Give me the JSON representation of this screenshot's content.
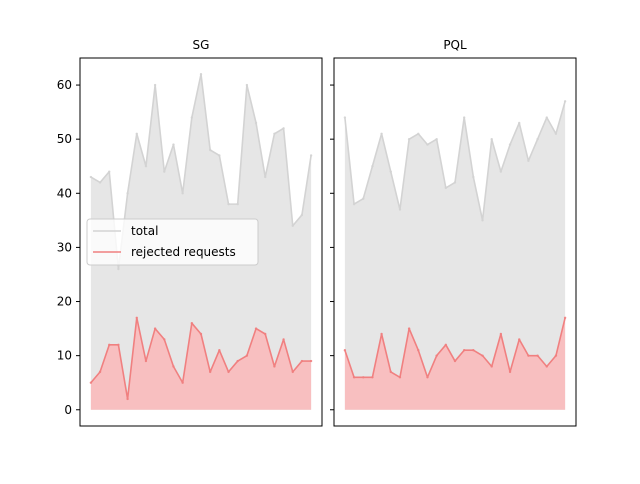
{
  "chart_data": {
    "type": "area",
    "shared_y": true,
    "ylim": [
      -3,
      65
    ],
    "yticks": [
      0,
      10,
      20,
      30,
      40,
      50,
      60
    ],
    "grid": false,
    "legend": {
      "placement": "center-left",
      "entries": [
        "total",
        "rejected requests"
      ]
    },
    "colors": {
      "total_line": "#d3d3d3",
      "total_fill": "#e6e6e6",
      "rejected_line": "#f08080",
      "rejected_fill": "#f8bfc0"
    },
    "panels": [
      {
        "title": "SG",
        "series": [
          {
            "name": "total",
            "values": [
              43,
              42,
              44,
              26,
              40,
              51,
              45,
              60,
              44,
              49,
              40,
              54,
              62,
              48,
              47,
              38,
              38,
              60,
              53,
              43,
              51,
              52,
              34,
              36,
              47
            ]
          },
          {
            "name": "rejected requests",
            "values": [
              5,
              7,
              12,
              12,
              2,
              17,
              9,
              15,
              13,
              8,
              5,
              16,
              14,
              7,
              11,
              7,
              9,
              10,
              15,
              14,
              8,
              13,
              7,
              9,
              9
            ]
          }
        ]
      },
      {
        "title": "PQL",
        "series": [
          {
            "name": "total",
            "values": [
              54,
              38,
              39,
              45,
              51,
              44,
              37,
              50,
              51,
              49,
              50,
              41,
              42,
              54,
              43,
              35,
              50,
              44,
              49,
              53,
              46,
              50,
              54,
              51,
              57
            ]
          },
          {
            "name": "rejected requests",
            "values": [
              11,
              6,
              6,
              6,
              14,
              7,
              6,
              15,
              11,
              6,
              10,
              12,
              9,
              11,
              11,
              10,
              8,
              14,
              7,
              13,
              10,
              10,
              8,
              10,
              17
            ]
          }
        ]
      }
    ]
  }
}
